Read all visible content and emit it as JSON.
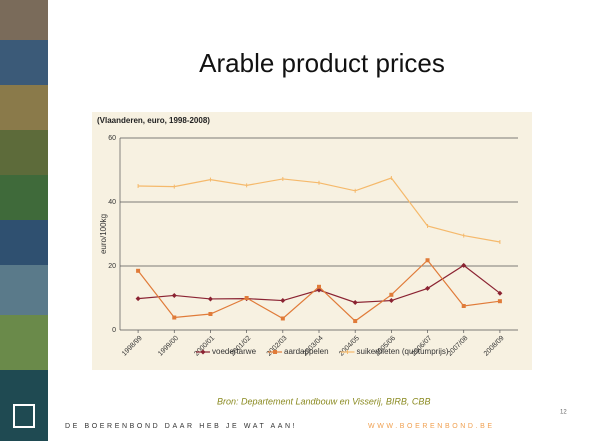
{
  "slide": {
    "title": "Arable product prices",
    "source": "Bron: Departement Landbouw en Visserij, BIRB, CBB",
    "footer": "DE BOERENBOND DAAR HEB JE WAT AAN!",
    "footer_url": "WWW.BOERENBOND.BE",
    "page_number": "12"
  },
  "chart_data": {
    "type": "line",
    "subtitle": "(Vlaanderen, euro, 1998-2008)",
    "y_label": "euro/100kg",
    "categories": [
      "1998/99",
      "1999/00",
      "2000/01",
      "2001/02",
      "2002/03",
      "2003/04",
      "2004/05",
      "2005/06",
      "2006/07",
      "2007/08",
      "2008/09"
    ],
    "series": [
      {
        "name": "voedertarwe",
        "color": "#8b2332",
        "marker": "diamond",
        "values": [
          9.8,
          10.8,
          9.7,
          9.8,
          9.2,
          12.5,
          8.6,
          9.2,
          13,
          20.2,
          11.5
        ]
      },
      {
        "name": "aardappelen",
        "color": "#e07b39",
        "marker": "square",
        "values": [
          18.5,
          3.9,
          5,
          10,
          3.6,
          13.5,
          2.8,
          11,
          21.8,
          7.5,
          9
        ]
      },
      {
        "name": "suikerbieten (quotumprijs)",
        "color": "#f5b96b",
        "marker": "tick",
        "values": [
          45,
          44.8,
          47,
          45.2,
          47.2,
          46,
          43.5,
          47.5,
          32.5,
          29.5,
          27.5
        ]
      }
    ],
    "ylim": [
      0,
      60
    ],
    "yticks": [
      0,
      20,
      40,
      60
    ],
    "grid": true
  }
}
